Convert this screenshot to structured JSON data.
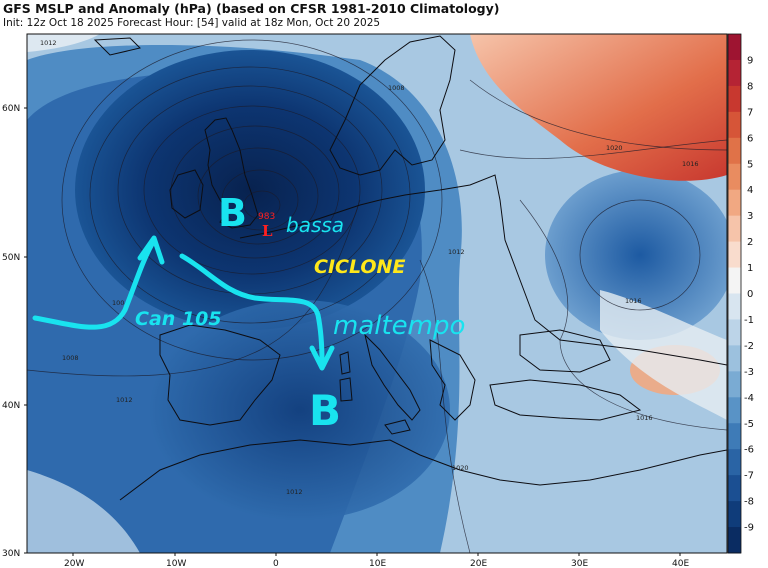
{
  "header": {
    "title": "GFS MSLP and Anomaly (hPa) (based on CFSR 1981-2010 Climatology)",
    "subtitle": "Init: 12z Oct 18 2025   Forecast Hour: [54]   valid at 18z Mon, Oct 20 2025"
  },
  "axes": {
    "lat_labels": [
      "60N",
      "50N",
      "40N",
      "30N"
    ],
    "lon_labels": [
      "20W",
      "10W",
      "0",
      "10E",
      "20E",
      "30E",
      "40E"
    ]
  },
  "colorbar": {
    "labels": [
      "9",
      "8",
      "7",
      "6",
      "5",
      "4",
      "3",
      "2",
      "1",
      "0",
      "-1",
      "-2",
      "-3",
      "-4",
      "-5",
      "-6",
      "-7",
      "-8",
      "-9"
    ],
    "colors": [
      "#9e1431",
      "#b52334",
      "#c8382f",
      "#d65538",
      "#e07248",
      "#e98c60",
      "#f1a882",
      "#f6c4aa",
      "#f9dccd",
      "#f4f4f4",
      "#d8e5f0",
      "#bcd4e8",
      "#9cc1de",
      "#7aabd3",
      "#5993c6",
      "#3e7bb7",
      "#2a64a5",
      "#1b4f92",
      "#0f3c7a",
      "#0a2c62"
    ]
  },
  "pressure": {
    "low_value": "983",
    "low_mark": "L",
    "isobar_labels": [
      "1004",
      "1008",
      "1008",
      "1012",
      "1012",
      "1012",
      "1016",
      "1016",
      "1016",
      "1020",
      "1020",
      "1012"
    ]
  },
  "annotations": {
    "b_north": "B",
    "b_south": "B",
    "bassa": "bassa",
    "ciclone": "CICLONE",
    "can105": "Can 105",
    "maltempo": "maltempo"
  },
  "colors": {
    "annotation_cyan": "#19e3ef",
    "annotation_yellow": "#ffe81a",
    "low_red": "#ff2020"
  }
}
